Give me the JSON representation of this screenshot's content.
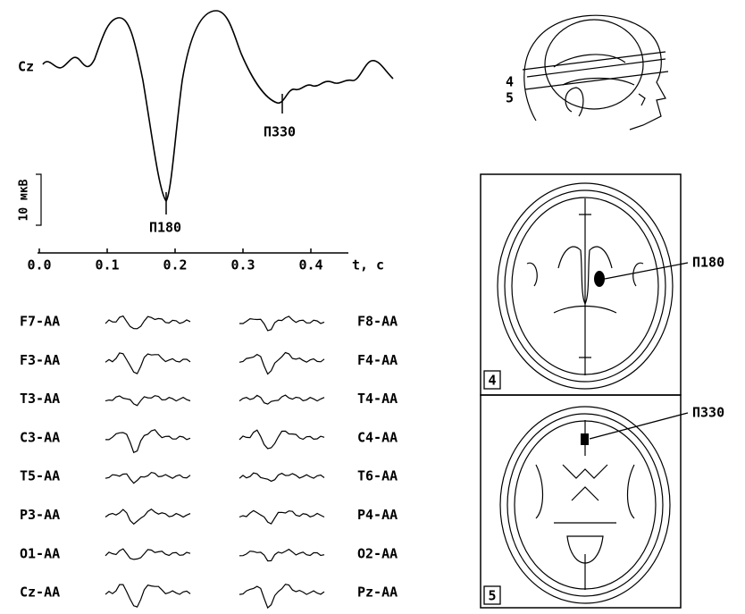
{
  "main_trace": {
    "label": "Cz",
    "peaks": [
      {
        "label": "П180"
      },
      {
        "label": "П330"
      }
    ],
    "scale_bar": "10 мкВ",
    "x_axis": {
      "ticks": [
        "0.0",
        "0.1",
        "0.2",
        "0.3",
        "0.4"
      ],
      "unit": "t, c"
    }
  },
  "channels": {
    "left": [
      "F7-AA",
      "F3-AA",
      "T3-AA",
      "C3-AA",
      "T5-AA",
      "P3-AA",
      "O1-AA",
      "Cz-AA"
    ],
    "right": [
      "F8-AA",
      "F4-AA",
      "T4-AA",
      "C4-AA",
      "T6-AA",
      "P4-AA",
      "O2-AA",
      "Pz-AA"
    ]
  },
  "head": {
    "planes": [
      "4",
      "5"
    ]
  },
  "slices": [
    {
      "number": "4",
      "label": "П180"
    },
    {
      "number": "5",
      "label": "П330"
    }
  ]
}
